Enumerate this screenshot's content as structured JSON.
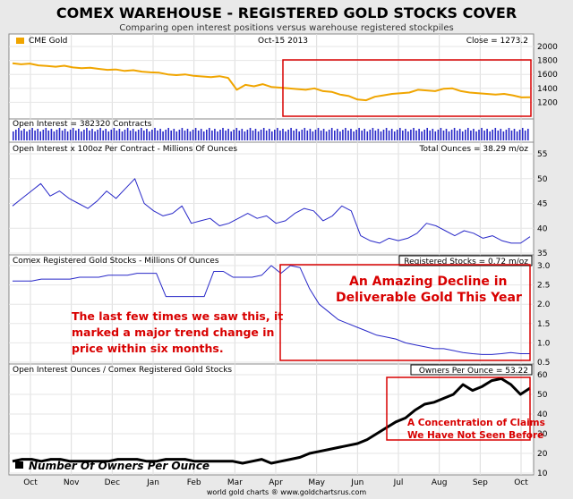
{
  "header": {
    "title": "COMEX WAREHOUSE - REGISTERED GOLD STOCKS COVER",
    "subtitle": "Comparing open interest positions versus warehouse registered stockpiles"
  },
  "footer": {
    "credit": "world gold charts ® www.goldchartsrus.com"
  },
  "colors": {
    "gold": "#f0a500",
    "blue": "#2828c8",
    "black": "#000000",
    "red": "#d80000",
    "panel_bg": "#ffffff",
    "page_bg": "#e9e9e9"
  },
  "chart_data": [
    {
      "type": "line",
      "panel": "gold",
      "title": "CME Gold",
      "date_label": "Oct-15  2013",
      "last_label": "Close = 1273.2",
      "series": [
        {
          "name": "CME Gold",
          "color": "#f0a500",
          "values": [
            1760,
            1745,
            1755,
            1730,
            1720,
            1710,
            1725,
            1700,
            1690,
            1695,
            1680,
            1665,
            1670,
            1650,
            1660,
            1640,
            1630,
            1625,
            1600,
            1590,
            1600,
            1580,
            1570,
            1560,
            1575,
            1550,
            1380,
            1450,
            1430,
            1460,
            1420,
            1410,
            1400,
            1390,
            1380,
            1400,
            1360,
            1350,
            1310,
            1290,
            1240,
            1230,
            1280,
            1300,
            1320,
            1330,
            1340,
            1380,
            1370,
            1360,
            1395,
            1400,
            1360,
            1340,
            1330,
            1320,
            1310,
            1320,
            1300,
            1270,
            1273
          ]
        }
      ],
      "ylim": [
        1000,
        2000
      ],
      "yticks": [
        1200,
        1400,
        1600,
        1800,
        2000
      ]
    },
    {
      "type": "bar",
      "panel": "oi",
      "title": "Open Interest = 382320 Contracts",
      "series": [
        {
          "name": "Open Interest",
          "color": "#2828c8"
        }
      ]
    },
    {
      "type": "line",
      "panel": "ounces",
      "title": "Open Interest x 100oz Per Contract - Millions Of Ounces",
      "last_label": "Total Ounces = 38.29 m/oz",
      "series": [
        {
          "name": "Total Ounces",
          "color": "#2828c8",
          "values": [
            44.5,
            46.0,
            47.5,
            49.0,
            46.5,
            47.5,
            46.0,
            45.0,
            44.0,
            45.5,
            47.5,
            46.0,
            48.0,
            50.0,
            45.0,
            43.5,
            42.5,
            43.0,
            44.5,
            41.0,
            41.5,
            42.0,
            40.5,
            41.0,
            42.0,
            43.0,
            42.0,
            42.5,
            41.0,
            41.5,
            43.0,
            44.0,
            43.5,
            41.5,
            42.5,
            44.5,
            43.5,
            38.5,
            37.5,
            37.0,
            38.0,
            37.5,
            38.0,
            39.0,
            41.0,
            40.5,
            39.5,
            38.5,
            39.5,
            39.0,
            38.0,
            38.5,
            37.5,
            37.0,
            37.0,
            38.3
          ]
        }
      ],
      "ylim": [
        35,
        55
      ],
      "yticks": [
        35,
        40,
        45,
        50,
        55
      ]
    },
    {
      "type": "line",
      "panel": "stocks",
      "title": "Comex Registered Gold Stocks - Millions Of Ounces",
      "last_label": "Registered Stocks = 0.72 m/oz",
      "series": [
        {
          "name": "Registered Stocks",
          "color": "#2828c8",
          "values": [
            2.6,
            2.6,
            2.6,
            2.65,
            2.65,
            2.65,
            2.65,
            2.7,
            2.7,
            2.7,
            2.75,
            2.75,
            2.75,
            2.8,
            2.8,
            2.8,
            2.2,
            2.2,
            2.2,
            2.2,
            2.2,
            2.85,
            2.85,
            2.7,
            2.7,
            2.7,
            2.75,
            3.0,
            2.8,
            3.0,
            2.95,
            2.4,
            2.0,
            1.8,
            1.6,
            1.5,
            1.4,
            1.3,
            1.2,
            1.15,
            1.1,
            1.0,
            0.95,
            0.9,
            0.85,
            0.85,
            0.8,
            0.75,
            0.72,
            0.7,
            0.7,
            0.72,
            0.75,
            0.72,
            0.72
          ]
        }
      ],
      "ylim": [
        0.5,
        3.0
      ],
      "yticks": [
        0.5,
        1.0,
        1.5,
        2.0,
        2.5,
        3.0
      ]
    },
    {
      "type": "line",
      "panel": "owners",
      "title": "Open Interest Ounces / Comex Registered Gold Stocks",
      "last_label": "Owners Per Ounce = 53.22",
      "legend": "Number Of Owners Per Ounce",
      "series": [
        {
          "name": "Number Of Owners Per Ounce",
          "color": "#000000",
          "values": [
            16,
            17,
            17,
            16,
            17,
            17,
            16,
            16,
            16,
            16,
            16,
            17,
            17,
            17,
            16,
            16,
            17,
            17,
            17,
            16,
            16,
            16,
            16,
            16,
            15,
            16,
            17,
            15,
            16,
            17,
            18,
            20,
            21,
            22,
            23,
            24,
            25,
            27,
            30,
            33,
            36,
            38,
            42,
            45,
            46,
            48,
            50,
            55,
            52,
            54,
            57,
            58,
            55,
            50,
            53.2
          ]
        }
      ],
      "ylim": [
        10,
        60
      ],
      "yticks": [
        10,
        20,
        30,
        40,
        50,
        60
      ]
    }
  ],
  "xaxis": {
    "months": [
      "Oct",
      "Nov",
      "Dec",
      "Jan",
      "Feb",
      "Mar",
      "Apr",
      "May",
      "Jun",
      "Jul",
      "Aug",
      "Sep",
      "Oct"
    ]
  },
  "annotations": {
    "decline": "An Amazing Decline in Deliverable Gold This Year",
    "last_times": "The last few times we saw this, it marked a major trend change in price within six months.",
    "concentration": "A Concentration of Claims We Have Not Seen Before"
  }
}
